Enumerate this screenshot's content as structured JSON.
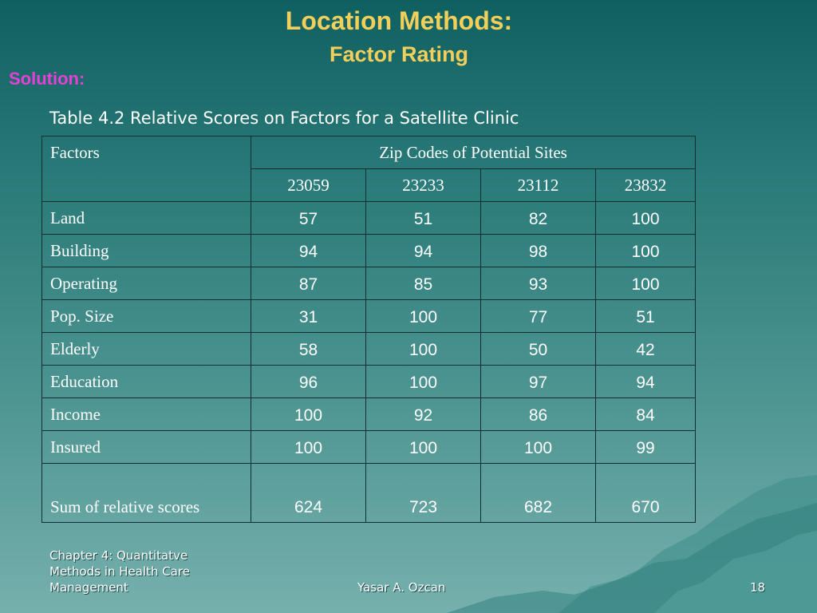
{
  "slide": {
    "title": "Location Methods:",
    "subtitle": "Factor Rating",
    "solution_label": "Solution:",
    "caption": "Table 4.2 Relative Scores on Factors for a Satellite Clinic"
  },
  "table": {
    "factors_header": "Factors",
    "group_header": "Zip Codes of Potential Sites",
    "zip_codes": [
      "23059",
      "23233",
      "23112",
      "23832"
    ],
    "rows": [
      {
        "label": "Land",
        "values": [
          "57",
          "51",
          "82",
          "100"
        ]
      },
      {
        "label": "Building",
        "values": [
          "94",
          "94",
          "98",
          "100"
        ]
      },
      {
        "label": "Operating",
        "values": [
          "87",
          "85",
          "93",
          "100"
        ]
      },
      {
        "label": "Pop. Size",
        "values": [
          "31",
          "100",
          "77",
          "51"
        ]
      },
      {
        "label": "Elderly",
        "values": [
          "58",
          "100",
          "50",
          "42"
        ]
      },
      {
        "label": "Education",
        "values": [
          "96",
          "100",
          "97",
          "94"
        ]
      },
      {
        "label": "Income",
        "values": [
          "100",
          "92",
          "86",
          "84"
        ]
      },
      {
        "label": "Insured",
        "values": [
          "100",
          "100",
          "100",
          "99"
        ]
      }
    ],
    "sum_row": {
      "label": "Sum of relative scores",
      "values": [
        "624",
        "723",
        "682",
        "670"
      ]
    }
  },
  "footer": {
    "left_line1": "Chapter 4: Quantitatve",
    "left_line2": "Methods in Health Care",
    "left_line3": "Management",
    "center": "Yasar A. Ozcan",
    "page_number": "18"
  }
}
